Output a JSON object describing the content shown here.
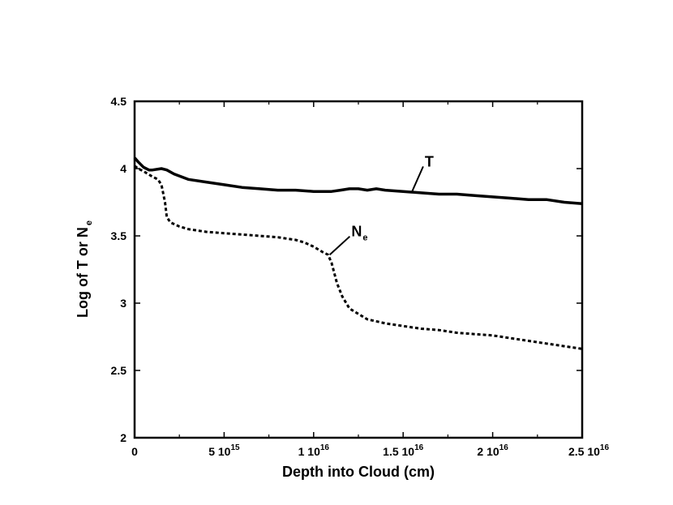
{
  "chart_data": {
    "type": "line",
    "xlabel": "Depth into Cloud (cm)",
    "ylabel_main": "Log of T or N",
    "ylabel_sub": "e",
    "xlim": [
      0,
      2.5e+16
    ],
    "ylim": [
      2,
      4.5
    ],
    "x_ticks": [
      {
        "value": 0,
        "mantissa": "0",
        "exponent": ""
      },
      {
        "value": 5000000000000000.0,
        "mantissa": "5 10",
        "exponent": "15"
      },
      {
        "value": 1e+16,
        "mantissa": "1 10",
        "exponent": "16"
      },
      {
        "value": 1.5e+16,
        "mantissa": "1.5 10",
        "exponent": "16"
      },
      {
        "value": 2e+16,
        "mantissa": "2 10",
        "exponent": "16"
      },
      {
        "value": 2.5e+16,
        "mantissa": "2.5 10",
        "exponent": "16"
      }
    ],
    "y_ticks": [
      {
        "value": 2,
        "label": "2"
      },
      {
        "value": 2.5,
        "label": "2.5"
      },
      {
        "value": 3,
        "label": "3"
      },
      {
        "value": 3.5,
        "label": "3.5"
      },
      {
        "value": 4,
        "label": "4"
      },
      {
        "value": 4.5,
        "label": "4.5"
      }
    ],
    "series": [
      {
        "key": "T",
        "style": "solid",
        "annotation": {
          "main": "T",
          "sub": "",
          "at_x": 1.55e+16,
          "at_y": 3.83,
          "text_x": 1.63e+16,
          "text_y": 4.04
        },
        "x": [
          0,
          200000000000000.0,
          500000000000000.0,
          800000000000000.0,
          1000000000000000.0,
          1500000000000000.0,
          1800000000000000.0,
          2200000000000000.0,
          3000000000000000.0,
          4000000000000000.0,
          5000000000000000.0,
          6000000000000000.0,
          7000000000000000.0,
          8000000000000000.0,
          9000000000000000.0,
          1e+16,
          1.1e+16,
          1.15e+16,
          1.2e+16,
          1.25e+16,
          1.3e+16,
          1.35e+16,
          1.4e+16,
          1.5e+16,
          1.6e+16,
          1.7e+16,
          1.8e+16,
          1.9e+16,
          2e+16,
          2.1e+16,
          2.2e+16,
          2.3e+16,
          2.4e+16,
          2.5e+16
        ],
        "y": [
          4.08,
          4.05,
          4.01,
          3.99,
          3.99,
          4.0,
          3.99,
          3.96,
          3.92,
          3.9,
          3.88,
          3.86,
          3.85,
          3.84,
          3.84,
          3.83,
          3.83,
          3.84,
          3.85,
          3.85,
          3.84,
          3.85,
          3.84,
          3.83,
          3.82,
          3.81,
          3.81,
          3.8,
          3.79,
          3.78,
          3.77,
          3.77,
          3.75,
          3.74
        ]
      },
      {
        "key": "Ne",
        "style": "dotted",
        "annotation": {
          "main": "N",
          "sub": "e",
          "at_x": 1.09e+16,
          "at_y": 3.36,
          "text_x": 1.22e+16,
          "text_y": 3.52
        },
        "x": [
          0,
          200000000000000.0,
          500000000000000.0,
          1000000000000000.0,
          1300000000000000.0,
          1500000000000000.0,
          1700000000000000.0,
          1800000000000000.0,
          2000000000000000.0,
          2500000000000000.0,
          3000000000000000.0,
          4000000000000000.0,
          5000000000000000.0,
          6000000000000000.0,
          7000000000000000.0,
          8000000000000000.0,
          9000000000000000.0,
          9500000000000000.0,
          1e+16,
          1.05e+16,
          1.08e+16,
          1.1e+16,
          1.13e+16,
          1.16e+16,
          1.2e+16,
          1.25e+16,
          1.3e+16,
          1.4e+16,
          1.5e+16,
          1.6e+16,
          1.7e+16,
          1.8e+16,
          1.9e+16,
          2e+16,
          2.1e+16,
          2.2e+16,
          2.3e+16,
          2.4e+16,
          2.5e+16
        ],
        "y": [
          4.02,
          4.0,
          3.98,
          3.94,
          3.92,
          3.88,
          3.75,
          3.64,
          3.6,
          3.57,
          3.55,
          3.53,
          3.52,
          3.51,
          3.5,
          3.49,
          3.47,
          3.45,
          3.42,
          3.38,
          3.36,
          3.3,
          3.15,
          3.05,
          2.96,
          2.92,
          2.88,
          2.85,
          2.83,
          2.81,
          2.8,
          2.78,
          2.77,
          2.76,
          2.74,
          2.72,
          2.7,
          2.68,
          2.66
        ]
      }
    ],
    "grid": false,
    "legend": "none"
  }
}
